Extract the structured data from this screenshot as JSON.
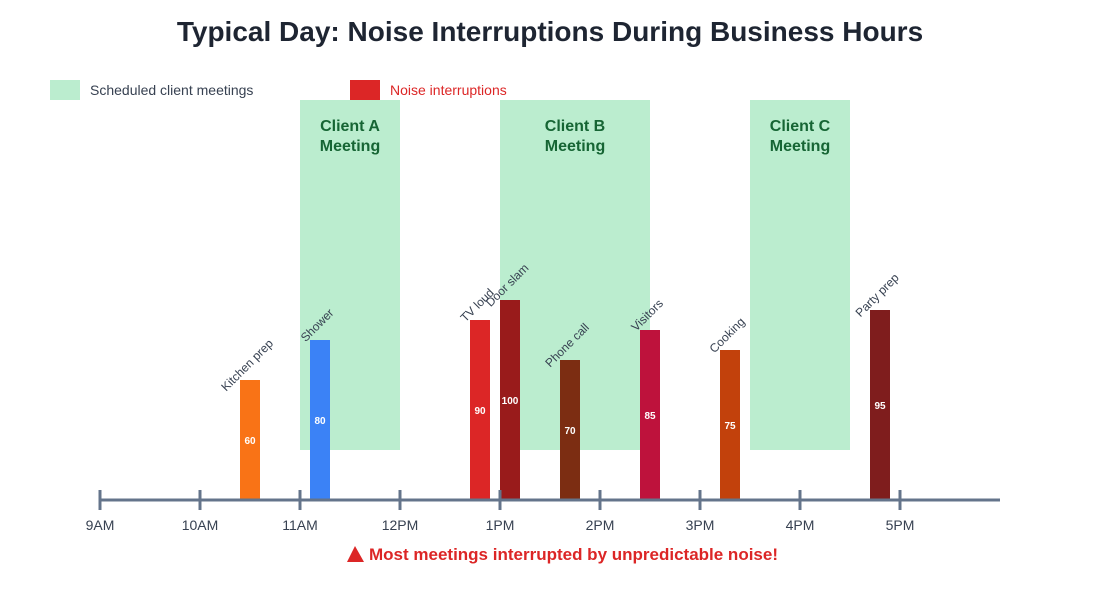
{
  "chart_data": {
    "type": "bar",
    "title": "Typical Day: Noise Interruptions During Business Hours",
    "x_axis": {
      "ticks": [
        "9AM",
        "10AM",
        "11AM",
        "12PM",
        "1PM",
        "2PM",
        "3PM",
        "4PM",
        "5PM"
      ],
      "range_hours": [
        9,
        18
      ]
    },
    "legend": {
      "placement": "top-left",
      "items": [
        {
          "label": "Scheduled client meetings",
          "color": "#bbedcf"
        },
        {
          "label": "Noise interruptions",
          "color": "#dc2626"
        }
      ]
    },
    "meetings": [
      {
        "label_lines": [
          "Client A",
          "Meeting"
        ],
        "start": 11.0,
        "end": 12.0
      },
      {
        "label_lines": [
          "Client B",
          "Meeting"
        ],
        "start": 13.0,
        "end": 14.5
      },
      {
        "label_lines": [
          "Client C",
          "Meeting"
        ],
        "start": 15.5,
        "end": 16.5
      }
    ],
    "interruptions": [
      {
        "label": "Kitchen prep",
        "time": 10.4,
        "value": 60,
        "color": "#f97316"
      },
      {
        "label": "Shower",
        "time": 11.1,
        "value": 80,
        "color": "#3b82f6"
      },
      {
        "label": "TV loud",
        "time": 12.7,
        "value": 90,
        "color": "#dc2626"
      },
      {
        "label": "Door slam",
        "time": 13.0,
        "value": 100,
        "color": "#991b1b"
      },
      {
        "label": "Phone call",
        "time": 13.6,
        "value": 70,
        "color": "#7c2d12"
      },
      {
        "label": "Visitors",
        "time": 14.4,
        "value": 85,
        "color": "#be123c"
      },
      {
        "label": "Cooking",
        "time": 15.2,
        "value": 75,
        "color": "#c2410c"
      },
      {
        "label": "Party prep",
        "time": 16.7,
        "value": 95,
        "color": "#7f1d1d"
      }
    ],
    "annotation": "Most meetings interrupted by unpredictable noise!",
    "colors": {
      "meeting_text": "#166534",
      "axis": "#64748b",
      "title": "#1e2532",
      "annotation": "#dc2626"
    }
  }
}
